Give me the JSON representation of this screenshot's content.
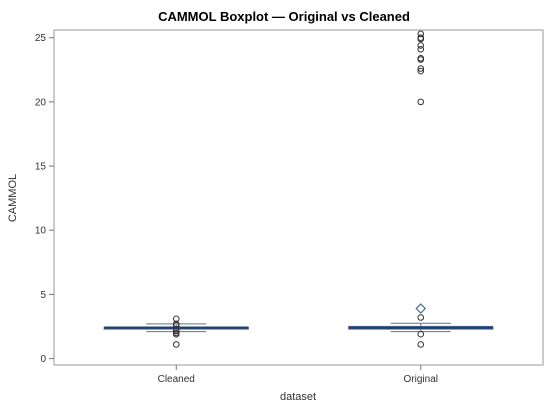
{
  "chart_data": {
    "type": "boxplot",
    "title": "CAMMOL Boxplot — Original vs Cleaned",
    "xlabel": "dataset",
    "ylabel": "CAMMOL",
    "categories": [
      "Cleaned",
      "Original"
    ],
    "ylim": [
      -0.5,
      25.6
    ],
    "yticks": [
      0,
      5,
      10,
      15,
      20,
      25
    ],
    "grid": false,
    "colors": {
      "box_edge": "#5b7396",
      "box_fill": "#e8ecf4",
      "median": "#1f3f6e",
      "whisker": "#5b7396",
      "mean_marker": "#5b7396",
      "outlier": "#333333"
    },
    "boxes": [
      {
        "category": "Cleaned",
        "whisker_low": 2.1,
        "q1": 2.3,
        "median": 2.4,
        "q3": 2.45,
        "whisker_high": 2.7,
        "mean": null,
        "outliers": [
          1.1,
          1.9,
          2.0,
          2.15,
          2.2,
          2.6,
          2.7,
          3.1
        ]
      },
      {
        "category": "Original",
        "whisker_low": 2.1,
        "q1": 2.3,
        "median": 2.4,
        "q3": 2.5,
        "whisker_high": 2.75,
        "mean": 3.9,
        "outliers": [
          1.1,
          1.9,
          3.2,
          20.0,
          22.4,
          22.6,
          23.3,
          23.4,
          24.1,
          24.4,
          24.9,
          25.0,
          25.3
        ]
      }
    ]
  }
}
